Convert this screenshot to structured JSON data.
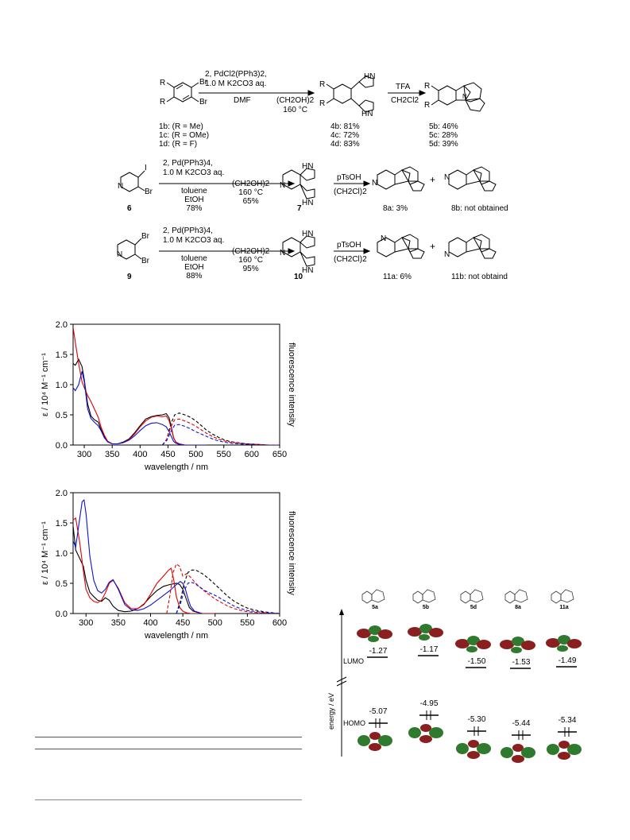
{
  "scheme": {
    "row1": {
      "reagents_top": "2, PdCl2(PPh3)2,",
      "reagents_base": "1.0 M K2CO3 aq.",
      "solvent1": "DMF",
      "solvent2": "(CH2OH)2",
      "temp": "160 °C",
      "acid": "TFA",
      "acid_solvent": "CH2Cl2",
      "start_labels": [
        "1b: (R = Me)",
        "1c: (R = OMe)",
        "1d: (R = F)"
      ],
      "mid_labels": [
        "4b: 81%",
        "4c: 72%",
        "4d: 83%"
      ],
      "end_labels": [
        "5b: 46%",
        "5c: 28%",
        "5d: 39%"
      ]
    },
    "row2": {
      "reagents_top": "2, Pd(PPh3)4,",
      "reagents_base": "1.0 M K2CO3 aq.",
      "solvent1a": "toluene",
      "solvent1b": "EtOH",
      "yield1": "78%",
      "solvent2": "(CH2OH)2",
      "temp": "160 °C",
      "yield2": "65%",
      "acid": "pTsOH",
      "acid_solvent": "(CH2Cl)2",
      "start": "6",
      "mid": "7",
      "prod_a": "8a: 3%",
      "prod_b": "8b: not obtained"
    },
    "row3": {
      "reagents_top": "2, Pd(PPh3)4,",
      "reagents_base": "1.0 M K2CO3 aq.",
      "solvent1a": "toluene",
      "solvent1b": "EtOH",
      "yield1": "88%",
      "solvent2": "(CH2OH)2",
      "temp": "160 °C",
      "yield2": "95%",
      "acid": "pTsOH",
      "acid_solvent": "(CH2Cl)2",
      "start": "9",
      "mid": "10",
      "prod_a": "11a: 6%",
      "prod_b": "11b: not obtaind"
    }
  },
  "chart_data": [
    {
      "type": "line",
      "xlabel": "wavelength / nm",
      "ylabel": "ε / 10⁴ M⁻¹ cm⁻¹",
      "y2label": "fluorescence intensity",
      "xlim": [
        280,
        650
      ],
      "ylim": [
        0,
        2.0
      ],
      "xticks": [
        300,
        350,
        400,
        450,
        500,
        550,
        600,
        650
      ],
      "yticks": [
        0.0,
        0.5,
        1.0,
        1.5,
        2.0
      ],
      "series": [
        {
          "color": "#000000",
          "style": "solid",
          "x": [
            280,
            284,
            290,
            296,
            300,
            306,
            312,
            318,
            325,
            330,
            336,
            342,
            350,
            360,
            370,
            380,
            390,
            400,
            410,
            420,
            430,
            440,
            447,
            452,
            456,
            460,
            464,
            470,
            480,
            500,
            520
          ],
          "y": [
            1.35,
            1.32,
            1.42,
            1.3,
            1.08,
            0.68,
            0.48,
            0.42,
            0.38,
            0.26,
            0.14,
            0.06,
            0.02,
            0.02,
            0.05,
            0.1,
            0.2,
            0.32,
            0.43,
            0.47,
            0.49,
            0.5,
            0.52,
            0.45,
            0.3,
            0.12,
            0.05,
            0.02,
            0.0,
            0.0,
            0.0
          ]
        },
        {
          "color": "#e00000",
          "style": "solid",
          "x": [
            280,
            284,
            290,
            296,
            300,
            306,
            312,
            318,
            325,
            330,
            336,
            342,
            350,
            360,
            370,
            380,
            390,
            400,
            410,
            420,
            430,
            440,
            447,
            452,
            456,
            460,
            464,
            470,
            480,
            500,
            520
          ],
          "y": [
            1.95,
            1.7,
            1.35,
            1.05,
            0.95,
            0.82,
            0.72,
            0.6,
            0.46,
            0.3,
            0.16,
            0.06,
            0.02,
            0.02,
            0.04,
            0.09,
            0.18,
            0.3,
            0.4,
            0.46,
            0.48,
            0.47,
            0.48,
            0.4,
            0.28,
            0.12,
            0.05,
            0.02,
            0.0,
            0.0,
            0.0
          ]
        },
        {
          "color": "#1010d0",
          "style": "solid",
          "x": [
            280,
            284,
            290,
            296,
            300,
            306,
            312,
            318,
            325,
            330,
            336,
            342,
            350,
            360,
            370,
            380,
            390,
            400,
            410,
            420,
            430,
            440,
            447,
            452,
            456,
            460,
            464,
            470,
            480,
            500,
            520
          ],
          "y": [
            0.95,
            0.9,
            1.0,
            1.22,
            1.05,
            0.6,
            0.44,
            0.38,
            0.32,
            0.24,
            0.12,
            0.05,
            0.02,
            0.02,
            0.04,
            0.08,
            0.15,
            0.24,
            0.32,
            0.36,
            0.37,
            0.34,
            0.3,
            0.22,
            0.14,
            0.06,
            0.03,
            0.01,
            0.0,
            0.0,
            0.0
          ]
        },
        {
          "color": "#000000",
          "style": "dash",
          "x": [
            440,
            448,
            455,
            462,
            470,
            480,
            490,
            500,
            510,
            520,
            530,
            540,
            550,
            560,
            575,
            590,
            610,
            630,
            650
          ],
          "y": [
            0.0,
            0.1,
            0.35,
            0.5,
            0.53,
            0.5,
            0.46,
            0.4,
            0.32,
            0.24,
            0.18,
            0.13,
            0.09,
            0.06,
            0.04,
            0.02,
            0.01,
            0.0,
            0.0
          ]
        },
        {
          "color": "#e00000",
          "style": "dash",
          "x": [
            440,
            448,
            455,
            462,
            470,
            480,
            490,
            500,
            510,
            520,
            530,
            540,
            550,
            560,
            575,
            590,
            610,
            630,
            650
          ],
          "y": [
            0.0,
            0.1,
            0.3,
            0.42,
            0.43,
            0.4,
            0.36,
            0.31,
            0.25,
            0.19,
            0.14,
            0.1,
            0.07,
            0.05,
            0.03,
            0.02,
            0.01,
            0.0,
            0.0
          ]
        },
        {
          "color": "#1010d0",
          "style": "dash",
          "x": [
            440,
            448,
            455,
            462,
            470,
            480,
            490,
            500,
            510,
            520,
            530,
            540,
            550,
            560,
            575,
            590,
            610,
            630,
            650
          ],
          "y": [
            0.0,
            0.08,
            0.22,
            0.33,
            0.34,
            0.31,
            0.27,
            0.22,
            0.18,
            0.14,
            0.1,
            0.07,
            0.05,
            0.03,
            0.02,
            0.01,
            0.0,
            0.0,
            0.0
          ]
        }
      ]
    },
    {
      "type": "line",
      "xlabel": "wavelength / nm",
      "ylabel": "ε / 10⁴ M⁻¹ cm⁻¹",
      "y2label": "fluorescence intensity",
      "xlim": [
        280,
        600
      ],
      "ylim": [
        0,
        2.0
      ],
      "xticks": [
        300,
        350,
        400,
        450,
        500,
        550,
        600
      ],
      "yticks": [
        0.0,
        0.5,
        1.0,
        1.5,
        2.0
      ],
      "series": [
        {
          "color": "#000000",
          "style": "solid",
          "x": [
            280,
            284,
            290,
            296,
            300,
            306,
            312,
            318,
            324,
            330,
            336,
            342,
            350,
            360,
            370,
            380,
            390,
            400,
            410,
            420,
            430,
            440,
            445,
            450,
            455,
            460,
            466,
            472,
            480,
            500
          ],
          "y": [
            1.45,
            1.05,
            0.92,
            0.78,
            0.55,
            0.35,
            0.28,
            0.22,
            0.2,
            0.26,
            0.22,
            0.12,
            0.05,
            0.03,
            0.04,
            0.08,
            0.16,
            0.28,
            0.38,
            0.45,
            0.48,
            0.5,
            0.48,
            0.4,
            0.25,
            0.1,
            0.04,
            0.02,
            0.0,
            0.0
          ]
        },
        {
          "color": "#e00000",
          "style": "solid",
          "x": [
            280,
            284,
            290,
            296,
            300,
            306,
            312,
            318,
            324,
            330,
            336,
            342,
            350,
            360,
            370,
            380,
            390,
            400,
            410,
            420,
            428,
            432,
            436,
            440,
            445,
            450,
            456,
            462,
            470,
            500
          ],
          "y": [
            1.55,
            1.58,
            1.2,
            0.7,
            0.4,
            0.26,
            0.2,
            0.18,
            0.22,
            0.34,
            0.5,
            0.55,
            0.42,
            0.18,
            0.08,
            0.08,
            0.15,
            0.32,
            0.5,
            0.62,
            0.72,
            0.75,
            0.55,
            0.28,
            0.1,
            0.04,
            0.01,
            0.0,
            0.0,
            0.0
          ]
        },
        {
          "color": "#1010d0",
          "style": "solid",
          "x": [
            280,
            284,
            290,
            294,
            297,
            300,
            306,
            312,
            318,
            324,
            330,
            336,
            342,
            350,
            360,
            370,
            380,
            390,
            400,
            410,
            420,
            430,
            440,
            446,
            450,
            454,
            458,
            462,
            468,
            480
          ],
          "y": [
            1.2,
            1.1,
            1.55,
            1.85,
            1.88,
            1.65,
            0.95,
            0.55,
            0.38,
            0.34,
            0.4,
            0.52,
            0.56,
            0.4,
            0.15,
            0.06,
            0.05,
            0.08,
            0.14,
            0.22,
            0.3,
            0.38,
            0.48,
            0.53,
            0.5,
            0.4,
            0.25,
            0.12,
            0.04,
            0.0
          ]
        },
        {
          "color": "#000000",
          "style": "dash",
          "x": [
            440,
            446,
            452,
            458,
            464,
            470,
            480,
            490,
            500,
            510,
            520,
            530,
            540,
            550,
            560,
            575,
            590,
            600
          ],
          "y": [
            0.0,
            0.2,
            0.5,
            0.68,
            0.72,
            0.72,
            0.66,
            0.58,
            0.48,
            0.38,
            0.28,
            0.2,
            0.14,
            0.09,
            0.06,
            0.03,
            0.01,
            0.0
          ]
        },
        {
          "color": "#e00000",
          "style": "dash",
          "x": [
            425,
            430,
            435,
            440,
            445,
            450,
            456,
            462,
            470,
            480,
            490,
            500,
            510,
            520,
            530,
            540,
            550,
            570,
            600
          ],
          "y": [
            0.0,
            0.3,
            0.68,
            0.82,
            0.78,
            0.62,
            0.66,
            0.6,
            0.5,
            0.4,
            0.32,
            0.24,
            0.18,
            0.12,
            0.08,
            0.05,
            0.03,
            0.01,
            0.0
          ]
        },
        {
          "color": "#1010d0",
          "style": "dash",
          "x": [
            440,
            446,
            452,
            458,
            462,
            468,
            476,
            484,
            492,
            500,
            510,
            520,
            530,
            540,
            550,
            565,
            580,
            600
          ],
          "y": [
            0.0,
            0.15,
            0.38,
            0.5,
            0.52,
            0.5,
            0.44,
            0.38,
            0.34,
            0.3,
            0.24,
            0.18,
            0.12,
            0.08,
            0.05,
            0.03,
            0.01,
            0.0
          ]
        }
      ]
    }
  ],
  "mo_diagram": {
    "compounds": [
      "5a",
      "5b",
      "5d",
      "8a",
      "11a"
    ],
    "lumo_label": "LUMO",
    "homo_label": "HOMO",
    "axis_label": "energy / eV",
    "lumo_values": [
      "-1.27",
      "-1.17",
      "-1.50",
      "-1.53",
      "-1.49"
    ],
    "homo_values": [
      "-5.07",
      "-4.95",
      "-5.30",
      "-5.44",
      "-5.34"
    ],
    "lobe_colors": {
      "positive": "#2f7a2f",
      "negative": "#8a1f1f"
    }
  }
}
